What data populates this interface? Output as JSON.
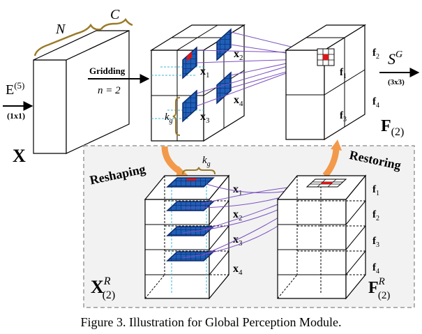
{
  "caption": "Figure 3. Illustration for Global Perception Module.",
  "input": {
    "symbol": "X",
    "dim_n": "N",
    "dim_c": "C",
    "embed": "E",
    "embed_sup": "(5)",
    "embed_size": "(1x1)"
  },
  "gridding": {
    "label": "Gridding",
    "n_eq": "n = 2",
    "kernel": "k",
    "kernel_sub": "g",
    "patches": [
      {
        "sym": "x",
        "sub": "1"
      },
      {
        "sym": "x",
        "sub": "2"
      },
      {
        "sym": "x",
        "sub": "3"
      },
      {
        "sym": "x",
        "sub": "4"
      }
    ]
  },
  "output": {
    "symbol": "F",
    "sub": "(2)",
    "conv": "S",
    "conv_sup": "G",
    "conv_size": "(3x3)",
    "cells": [
      {
        "sym": "f",
        "sub": "1"
      },
      {
        "sym": "f",
        "sub": "2"
      },
      {
        "sym": "f",
        "sub": "3"
      },
      {
        "sym": "f",
        "sub": "4"
      }
    ]
  },
  "reshaping": {
    "label": "Reshaping",
    "kernel": "k",
    "kernel_sub": "g",
    "symbol": "X",
    "sup": "R",
    "sub": "(2)"
  },
  "restoring": {
    "label": "Restoring",
    "symbol": "F",
    "sup": "R",
    "sub": "(2)"
  },
  "colors": {
    "grid_blue": "#1f5fb8",
    "grid_line": "#0b2a6a",
    "highlight": "#e01515",
    "connector": "#7a4fc0",
    "brace": "#9a7a2a",
    "arrow_orange": "#f29a4a",
    "dashed_box": "#999999",
    "dashed_bg": "#f2f2f2",
    "cyan_dash": "#39b9d6"
  }
}
